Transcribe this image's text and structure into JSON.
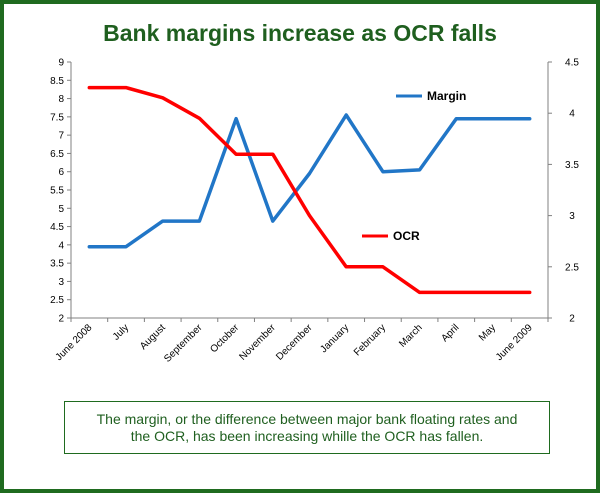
{
  "colors": {
    "margin": "#2176c7",
    "ocr": "#ff0000",
    "frame": "#1f6b1f",
    "title": "#1f5f1f"
  },
  "chart_data": {
    "type": "line",
    "title": "Bank margins increase as OCR falls",
    "categories": [
      "June 2008",
      "July",
      "August",
      "September",
      "October",
      "November",
      "December",
      "January",
      "February",
      "March",
      "April",
      "May",
      "June 2009"
    ],
    "series": [
      {
        "name": "Margin",
        "axis": "left",
        "values": [
          3.95,
          3.95,
          4.65,
          4.65,
          7.45,
          4.65,
          5.95,
          7.55,
          6.0,
          6.05,
          7.45,
          7.45,
          7.45
        ]
      },
      {
        "name": "OCR",
        "axis": "right",
        "values": [
          4.25,
          4.25,
          4.15,
          3.95,
          3.6,
          3.6,
          3.0,
          2.5,
          2.5,
          2.25,
          2.25,
          2.25,
          2.25
        ]
      }
    ],
    "left_axis": {
      "ylim": [
        2,
        9
      ],
      "ticks": [
        "2",
        "2.5",
        "3",
        "3.5",
        "4",
        "4.5",
        "5",
        "5.5",
        "6",
        "6.5",
        "7",
        "7.5",
        "8",
        "8.5",
        "9"
      ]
    },
    "right_axis": {
      "ylim": [
        2,
        4.5
      ],
      "ticks": [
        "2",
        "2.5",
        "3",
        "3.5",
        "4",
        "4.5"
      ]
    },
    "grid": false,
    "legend": "inline"
  },
  "caption": "The margin, or the difference between major bank floating rates and the OCR, has been increasing whille the OCR has fallen."
}
